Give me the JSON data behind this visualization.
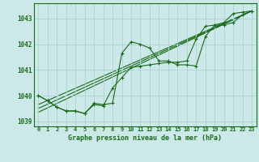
{
  "title": "Graphe pression niveau de la mer (hPa)",
  "background_color": "#cce8e8",
  "grid_color": "#aad4d4",
  "line_color": "#1a6b1a",
  "xlim": [
    -0.5,
    23.5
  ],
  "ylim": [
    1038.8,
    1043.6
  ],
  "yticks": [
    1039,
    1040,
    1041,
    1042,
    1043
  ],
  "xticks": [
    0,
    1,
    2,
    3,
    4,
    5,
    6,
    7,
    8,
    9,
    10,
    11,
    12,
    13,
    14,
    15,
    16,
    17,
    18,
    19,
    20,
    21,
    22,
    23
  ],
  "xtick_labels": [
    "0",
    "1",
    "2",
    "3",
    "4",
    "5",
    "6",
    "7",
    "8",
    "9",
    "10",
    "11",
    "12",
    "13",
    "14",
    "15",
    "16",
    "17",
    "18",
    "19",
    "20",
    "21",
    "22",
    "23"
  ],
  "series_main": [
    1040.0,
    1039.8,
    1039.55,
    1039.4,
    1039.4,
    1039.3,
    1039.7,
    1039.65,
    1039.7,
    1041.65,
    1042.1,
    1042.0,
    1041.85,
    1041.35,
    1041.35,
    1041.2,
    1041.2,
    1041.15,
    1042.3,
    1042.75,
    1042.75,
    1042.85,
    1043.15,
    1043.3
  ],
  "series_alt": [
    1040.0,
    1039.8,
    1039.55,
    1039.4,
    1039.4,
    1039.3,
    1039.65,
    1039.6,
    1040.3,
    1040.7,
    1041.1,
    1041.15,
    1041.2,
    1041.25,
    1041.3,
    1041.3,
    1041.35,
    1042.2,
    1042.7,
    1042.75,
    1042.85,
    1043.2,
    1043.25,
    1043.3
  ],
  "trend_lines": [
    {
      "x": [
        0,
        23
      ],
      "y": [
        1039.35,
        1043.3
      ]
    },
    {
      "x": [
        0,
        23
      ],
      "y": [
        1039.5,
        1043.3
      ]
    },
    {
      "x": [
        0,
        23
      ],
      "y": [
        1039.65,
        1043.3
      ]
    }
  ]
}
